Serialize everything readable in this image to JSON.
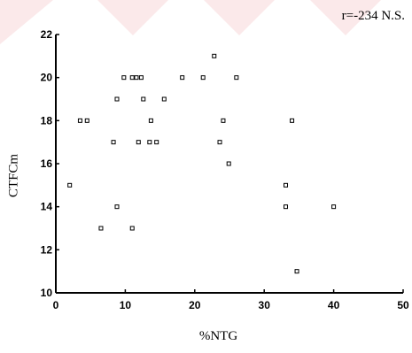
{
  "chart_data": {
    "type": "scatter",
    "title": "",
    "annotation": "r=-234 N.S.",
    "xlabel": "%NTG",
    "ylabel": "CTFCm",
    "xlim": [
      0,
      50
    ],
    "ylim": [
      10,
      22
    ],
    "xticks": [
      0,
      10,
      20,
      30,
      40,
      50
    ],
    "yticks": [
      10,
      12,
      14,
      16,
      18,
      20,
      22
    ],
    "points": [
      {
        "x": 2,
        "y": 15
      },
      {
        "x": 3.5,
        "y": 18
      },
      {
        "x": 4.5,
        "y": 18
      },
      {
        "x": 6.5,
        "y": 13
      },
      {
        "x": 8.3,
        "y": 17
      },
      {
        "x": 8.8,
        "y": 19
      },
      {
        "x": 8.8,
        "y": 14
      },
      {
        "x": 9.8,
        "y": 20
      },
      {
        "x": 11,
        "y": 20
      },
      {
        "x": 11.6,
        "y": 20
      },
      {
        "x": 12.3,
        "y": 20
      },
      {
        "x": 11,
        "y": 13
      },
      {
        "x": 11.9,
        "y": 17
      },
      {
        "x": 12.6,
        "y": 19
      },
      {
        "x": 13.5,
        "y": 17
      },
      {
        "x": 13.7,
        "y": 18
      },
      {
        "x": 14.5,
        "y": 17
      },
      {
        "x": 15.6,
        "y": 19
      },
      {
        "x": 18.2,
        "y": 20
      },
      {
        "x": 21.2,
        "y": 20
      },
      {
        "x": 22.8,
        "y": 21
      },
      {
        "x": 23.6,
        "y": 17
      },
      {
        "x": 24.1,
        "y": 18
      },
      {
        "x": 24.9,
        "y": 16
      },
      {
        "x": 26,
        "y": 20
      },
      {
        "x": 33.1,
        "y": 15
      },
      {
        "x": 33.1,
        "y": 14
      },
      {
        "x": 34,
        "y": 18
      },
      {
        "x": 34.7,
        "y": 11
      },
      {
        "x": 40,
        "y": 14
      }
    ]
  }
}
